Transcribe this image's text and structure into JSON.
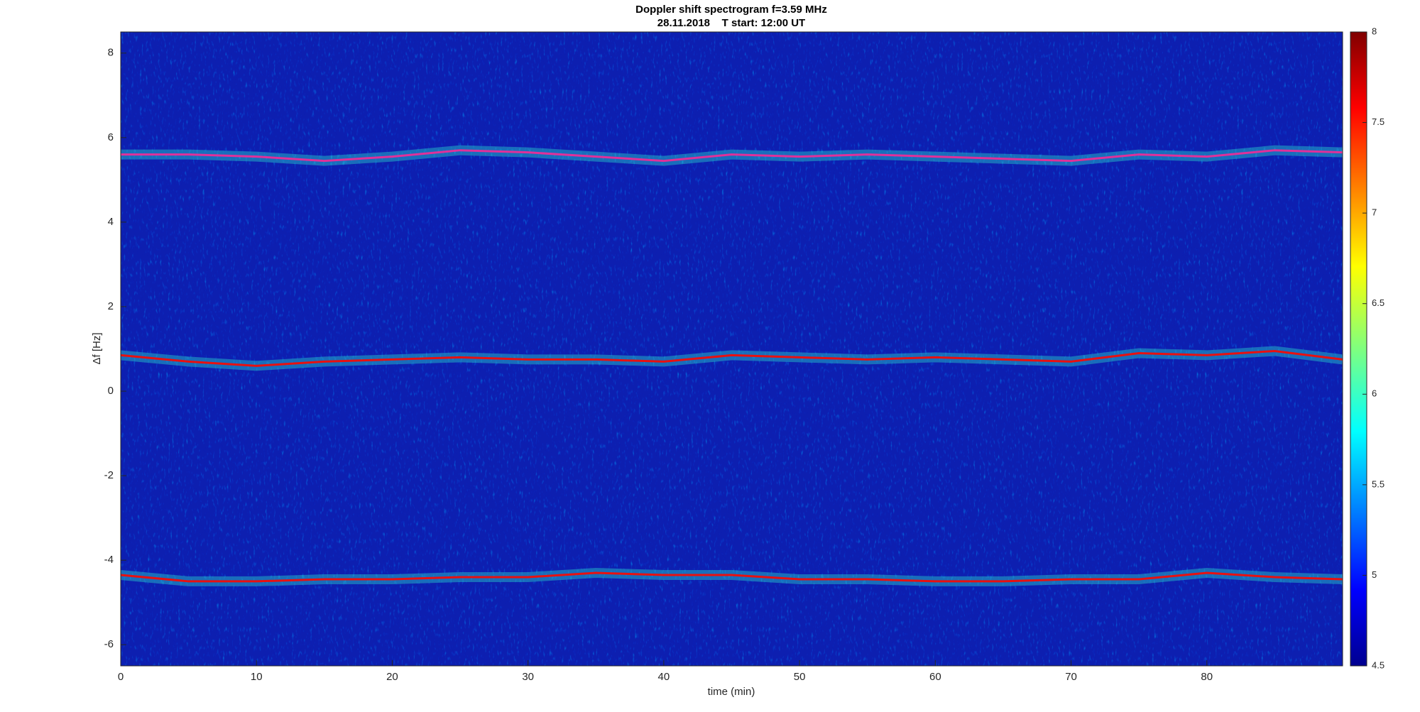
{
  "chart_data": {
    "type": "line",
    "title": "Doppler shift spectrogram f=3.59 MHz",
    "subtitle": "28.11.2018    T start: 12:00 UT",
    "x_label": "time (min)",
    "y_label": "Δf [Hz]",
    "xlim": [
      0,
      90
    ],
    "xticks": [
      0,
      10,
      20,
      30,
      40,
      50,
      60,
      70,
      80
    ],
    "ylim": [
      -6.5,
      8.5
    ],
    "yticks": [
      -6,
      -4,
      -2,
      0,
      2,
      4,
      6,
      8
    ],
    "x": [
      0,
      5,
      10,
      15,
      20,
      25,
      30,
      35,
      40,
      45,
      50,
      55,
      60,
      65,
      70,
      75,
      80,
      85,
      90
    ],
    "series": [
      {
        "color": "#e0309a",
        "values": [
          5.6,
          5.6,
          5.55,
          5.45,
          5.55,
          5.7,
          5.65,
          5.55,
          5.45,
          5.6,
          5.55,
          5.6,
          5.55,
          5.5,
          5.45,
          5.6,
          5.55,
          5.7,
          5.65
        ]
      },
      {
        "color": "#e81010",
        "values": [
          0.85,
          0.7,
          0.6,
          0.7,
          0.75,
          0.8,
          0.75,
          0.75,
          0.7,
          0.85,
          0.8,
          0.75,
          0.8,
          0.75,
          0.7,
          0.9,
          0.85,
          0.95,
          0.75
        ]
      },
      {
        "color": "#e81010",
        "values": [
          -4.35,
          -4.5,
          -4.5,
          -4.45,
          -4.45,
          -4.4,
          -4.4,
          -4.3,
          -4.35,
          -4.35,
          -4.45,
          -4.45,
          -4.5,
          -4.5,
          -4.45,
          -4.45,
          -4.3,
          -4.4,
          -4.45
        ]
      }
    ],
    "colorbar": {
      "lim": [
        4.5,
        8
      ],
      "ticks": [
        4.5,
        5,
        5.5,
        6,
        6.5,
        7,
        7.5,
        8
      ]
    }
  }
}
